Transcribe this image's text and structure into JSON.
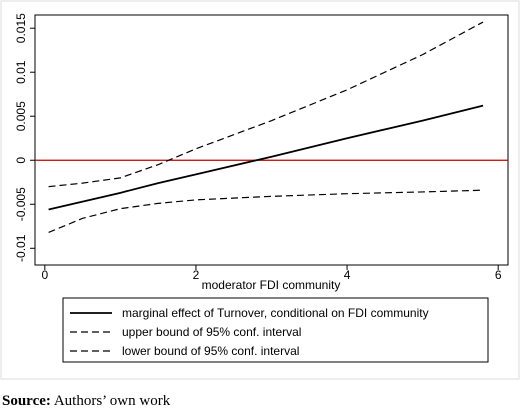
{
  "chart_data": {
    "type": "line",
    "x_label": "moderator FDI community",
    "x": [
      0.05,
      0.5,
      1,
      1.5,
      2,
      3,
      4,
      5,
      5.8
    ],
    "series": [
      {
        "name": "marginal effect of Turnover, conditional on FDI community",
        "color": "#000000",
        "dash": "solid",
        "values": [
          -0.0056,
          -0.0047,
          -0.0037,
          -0.0026,
          -0.0016,
          0.0004,
          0.0025,
          0.0045,
          0.0062
        ]
      },
      {
        "name": "upper bound of 95% conf. interval",
        "color": "#000000",
        "dash": "dashed",
        "values": [
          -0.003,
          -0.0026,
          -0.002,
          -0.0005,
          0.0013,
          0.0045,
          0.008,
          0.012,
          0.0157
        ]
      },
      {
        "name": "lower bound of 95% conf. interval",
        "color": "#000000",
        "dash": "dashed",
        "values": [
          -0.0082,
          -0.0066,
          -0.0055,
          -0.0049,
          -0.0045,
          -0.0041,
          -0.0038,
          -0.0036,
          -0.0034
        ]
      }
    ],
    "reference_line": {
      "value": 0,
      "color": "#c00000"
    },
    "xlim": [
      -0.13,
      6.13
    ],
    "xticks": [
      0,
      2,
      4,
      6
    ],
    "ylim": [
      -0.0119,
      0.0165
    ],
    "yticks": [
      -0.01,
      -0.005,
      0,
      0.005,
      0.01,
      0.015
    ],
    "grid": false
  },
  "source_label": "Source:",
  "source_text": "Authors’ own work"
}
